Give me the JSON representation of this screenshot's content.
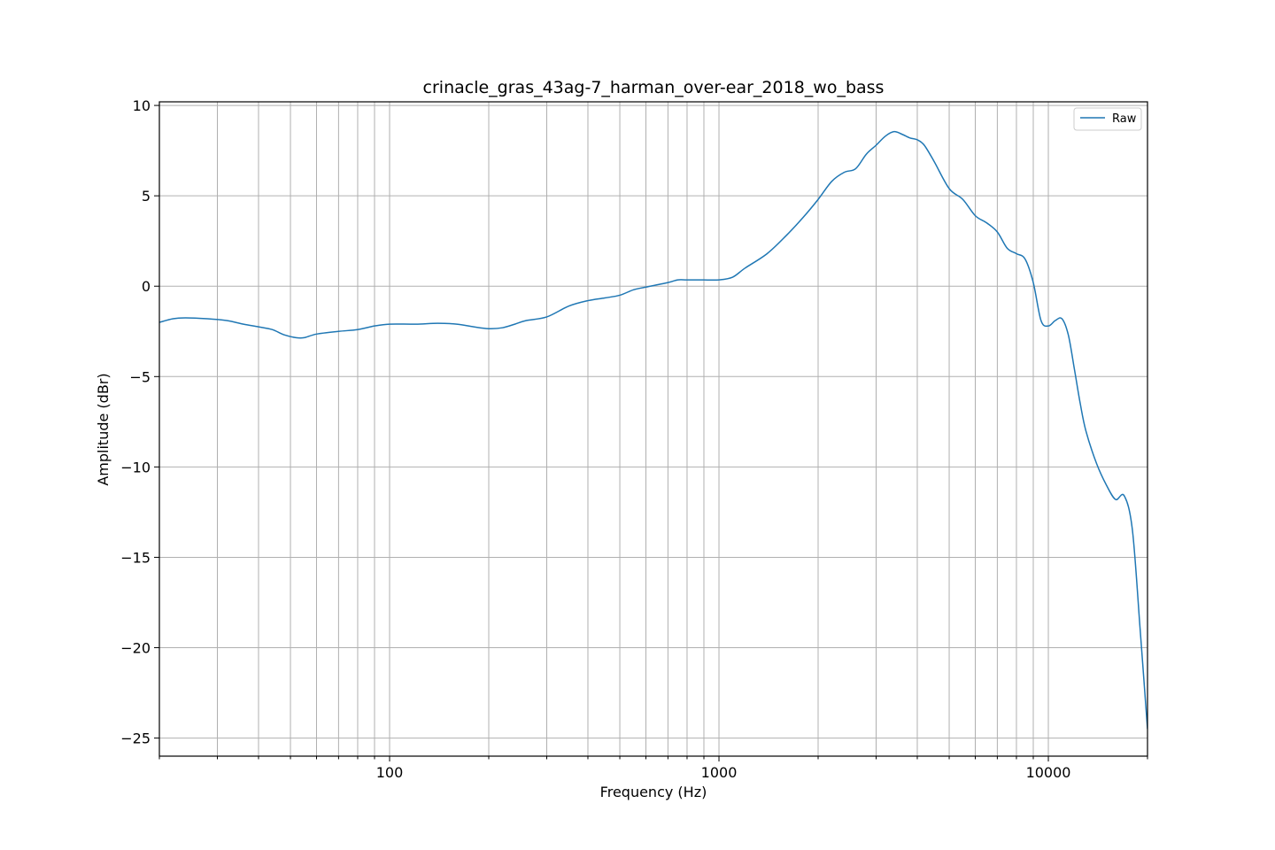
{
  "chart_data": {
    "type": "line",
    "title": "crinacle_gras_43ag-7_harman_over-ear_2018_wo_bass",
    "xlabel": "Frequency (Hz)",
    "ylabel": "Amplitude (dBr)",
    "xscale": "log",
    "xlim": [
      20,
      20000
    ],
    "ylim": [
      -26,
      10.2
    ],
    "x_ticks": [
      {
        "value": 100,
        "label": "100"
      },
      {
        "value": 1000,
        "label": "1000"
      },
      {
        "value": 10000,
        "label": "10000"
      }
    ],
    "y_ticks": [
      {
        "value": 10,
        "label": "10"
      },
      {
        "value": 5,
        "label": "5"
      },
      {
        "value": 0,
        "label": "0"
      },
      {
        "value": -5,
        "label": "−5"
      },
      {
        "value": -10,
        "label": "−10"
      },
      {
        "value": -15,
        "label": "−15"
      },
      {
        "value": -20,
        "label": "−20"
      },
      {
        "value": -25,
        "label": "−25"
      }
    ],
    "grid": true,
    "legend": {
      "placement": "top-right",
      "entries": [
        "Raw"
      ]
    },
    "colors": {
      "raw": "#1f77b4",
      "grid": "#b0b0b0"
    },
    "series": [
      {
        "name": "Raw",
        "x": [
          20,
          22,
          24,
          28,
          32,
          36,
          40,
          44,
          48,
          52,
          55,
          60,
          70,
          80,
          90,
          100,
          120,
          140,
          160,
          180,
          200,
          220,
          240,
          260,
          300,
          350,
          400,
          450,
          500,
          550,
          600,
          700,
          750,
          800,
          900,
          1000,
          1100,
          1200,
          1400,
          1600,
          1800,
          2000,
          2200,
          2400,
          2600,
          2800,
          3000,
          3200,
          3400,
          3600,
          3800,
          4000,
          4200,
          4500,
          5000,
          5500,
          6000,
          6500,
          7000,
          7500,
          8000,
          8500,
          9000,
          9500,
          10000,
          10500,
          11000,
          11500,
          12000,
          12500,
          13000,
          14000,
          15000,
          16000,
          17000,
          18000,
          19000,
          20000
        ],
        "y": [
          -2.0,
          -1.8,
          -1.75,
          -1.8,
          -1.9,
          -2.1,
          -2.25,
          -2.4,
          -2.7,
          -2.85,
          -2.85,
          -2.65,
          -2.5,
          -2.4,
          -2.2,
          -2.1,
          -2.1,
          -2.05,
          -2.1,
          -2.25,
          -2.35,
          -2.3,
          -2.1,
          -1.9,
          -1.7,
          -1.1,
          -0.8,
          -0.65,
          -0.5,
          -0.2,
          -0.05,
          0.2,
          0.35,
          0.35,
          0.35,
          0.35,
          0.5,
          1.0,
          1.8,
          2.8,
          3.8,
          4.8,
          5.8,
          6.3,
          6.5,
          7.3,
          7.8,
          8.3,
          8.55,
          8.4,
          8.2,
          8.1,
          7.8,
          6.9,
          5.4,
          4.8,
          3.9,
          3.5,
          3.0,
          2.1,
          1.8,
          1.5,
          0.2,
          -1.9,
          -2.2,
          -1.9,
          -1.8,
          -2.7,
          -4.6,
          -6.5,
          -8.0,
          -9.8,
          -11.0,
          -11.8,
          -11.6,
          -13.5,
          -19.0,
          -24.5
        ]
      }
    ]
  }
}
